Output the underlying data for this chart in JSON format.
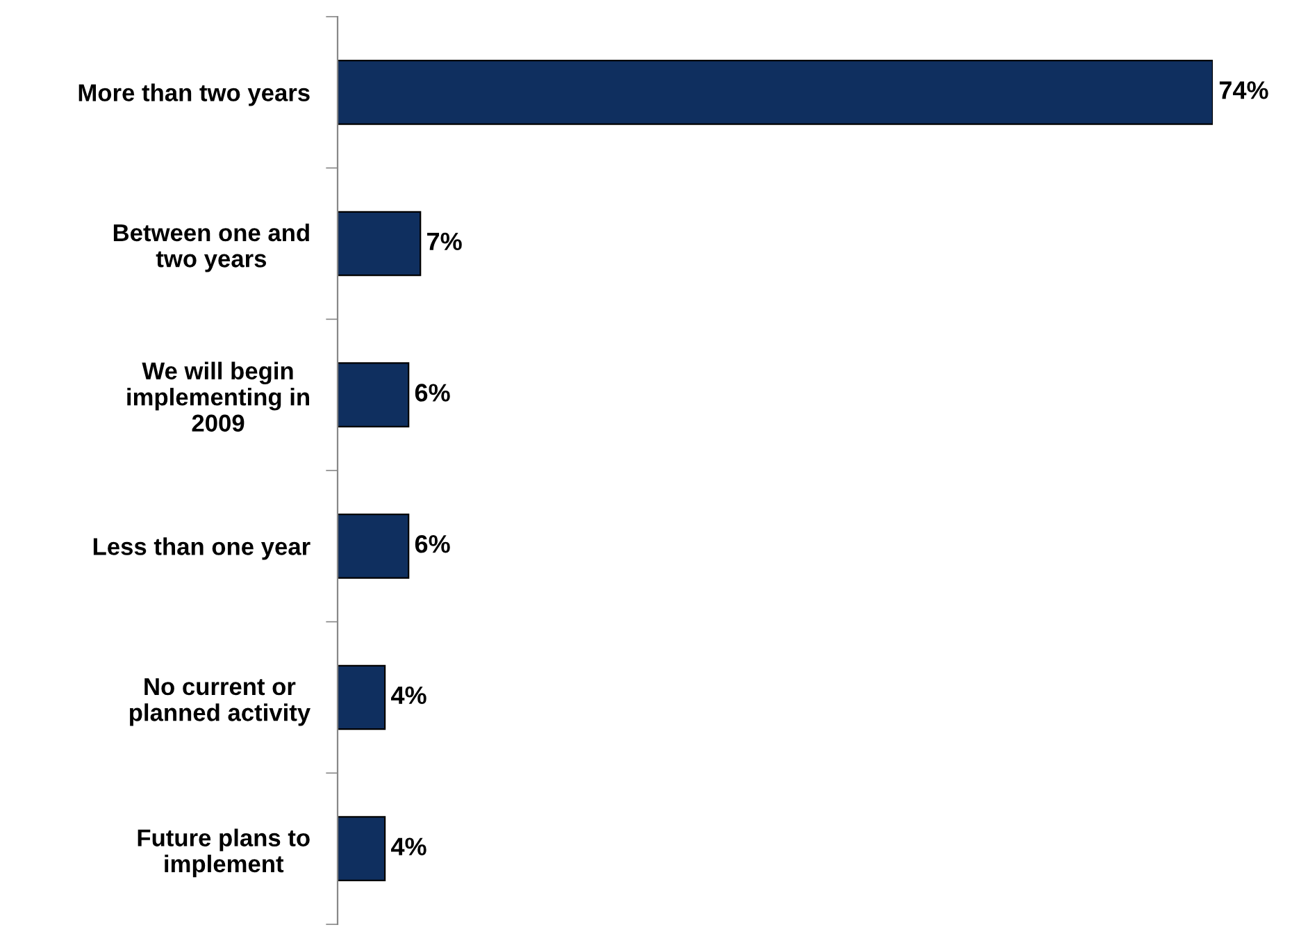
{
  "chart_data": {
    "type": "bar",
    "orientation": "horizontal",
    "categories": [
      "More than two years",
      "Between one and\ntwo years",
      "We will begin\nimplementing in\n2009",
      "Less than one year",
      "No current or\nplanned activity",
      "Future plans to\nimplement"
    ],
    "values": [
      74,
      7,
      6,
      6,
      4,
      4
    ],
    "value_labels": [
      "74%",
      "7%",
      "6%",
      "6%",
      "4%",
      "4%"
    ],
    "color": "#0f2f5f",
    "grid": false,
    "legend": false
  }
}
